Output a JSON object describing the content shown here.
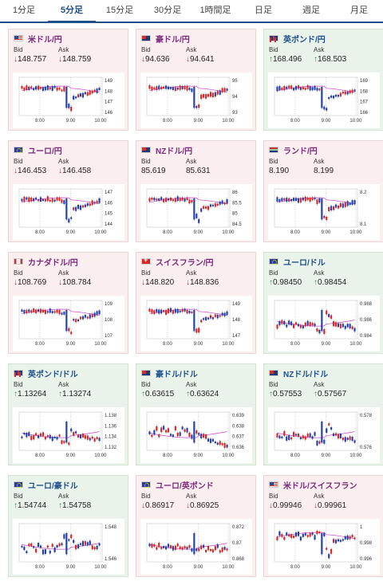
{
  "tabs": [
    "1分足",
    "5分足",
    "15分足",
    "30分足",
    "1時間足",
    "日足",
    "週足",
    "月足"
  ],
  "active_tab": 1,
  "labels": {
    "bid": "Bid",
    "ask": "Ask"
  },
  "cards": [
    {
      "pair": "米ドル/円",
      "flag": "us",
      "dir": "down",
      "bid": "148.757",
      "ask": "148.759",
      "yticks": [
        "149",
        "148",
        "147",
        "146"
      ],
      "xticks": [
        "8:00",
        "9:00",
        "10:00"
      ]
    },
    {
      "pair": "豪ドル/円",
      "flag": "au",
      "dir": "down",
      "bid": "94.636",
      "ask": "94.641",
      "yticks": [
        "95",
        "94",
        "93"
      ],
      "xticks": [
        "8:00",
        "9:00",
        "10:00"
      ]
    },
    {
      "pair": "英ポンド/円",
      "flag": "gb",
      "dir": "up",
      "bid": "168.496",
      "ask": "168.503",
      "yticks": [
        "169",
        "168",
        "167",
        "166"
      ],
      "xticks": [
        "8:00",
        "9:00",
        "10:00"
      ]
    },
    {
      "pair": "ユーロ/円",
      "flag": "eu",
      "dir": "down",
      "bid": "146.453",
      "ask": "146.458",
      "yticks": [
        "147",
        "146",
        "145",
        "144"
      ],
      "xticks": [
        "8:00",
        "9:00",
        "10:00"
      ]
    },
    {
      "pair": "NZドル/円",
      "flag": "nz",
      "dir": "none",
      "bid": "85.619",
      "ask": "85.631",
      "yticks": [
        "86",
        "85.5",
        "85",
        "84.5"
      ],
      "xticks": [
        "8:00",
        "9:00",
        "10:00"
      ]
    },
    {
      "pair": "ランド/円",
      "flag": "za",
      "dir": "none",
      "bid": "8.190",
      "ask": "8.199",
      "yticks": [
        "8.2",
        "8.1"
      ],
      "xticks": [
        "8:00",
        "9:00",
        "10:00"
      ]
    },
    {
      "pair": "カナダドル/円",
      "flag": "ca",
      "dir": "down",
      "bid": "108.769",
      "ask": "108.784",
      "yticks": [
        "109",
        "108",
        "107"
      ],
      "xticks": [
        "8:00",
        "9:00",
        "10:00"
      ]
    },
    {
      "pair": "スイスフラン/円",
      "flag": "ch",
      "dir": "down",
      "bid": "148.820",
      "ask": "148.836",
      "yticks": [
        "149",
        "148",
        "147"
      ],
      "xticks": [
        "8:00",
        "9:00",
        "10:00"
      ]
    },
    {
      "pair": "ユーロ/ドル",
      "flag": "eu",
      "dir": "up",
      "bid": "0.98450",
      "ask": "0.98454",
      "yticks": [
        "0.988",
        "0.986",
        "0.984"
      ],
      "xticks": [
        "8:00",
        "9:00",
        "10:00"
      ]
    },
    {
      "pair": "英ポンド/ドル",
      "flag": "gb",
      "dir": "up",
      "bid": "1.13264",
      "ask": "1.13274",
      "yticks": [
        "1.138",
        "1.136",
        "1.134",
        "1.132"
      ],
      "xticks": [
        "8:00",
        "9:00",
        "10:00"
      ]
    },
    {
      "pair": "豪ドル/ドル",
      "flag": "au",
      "dir": "up",
      "bid": "0.63615",
      "ask": "0.63624",
      "yticks": [
        "0.639",
        "0.638",
        "0.637",
        "0.636"
      ],
      "xticks": [
        "8:00",
        "9:00",
        "10:00"
      ]
    },
    {
      "pair": "NZドル/ドル",
      "flag": "nz",
      "dir": "up",
      "bid": "0.57553",
      "ask": "0.57567",
      "yticks": [
        "0.578",
        "0.576"
      ],
      "xticks": [
        "8:00",
        "9:00",
        "10:00"
      ]
    },
    {
      "pair": "ユーロ/豪ドル",
      "flag": "eu",
      "dir": "up",
      "bid": "1.54744",
      "ask": "1.54758",
      "yticks": [
        "1.548",
        "1.546"
      ],
      "xticks": [
        "8:00",
        "9:00",
        "10:00"
      ]
    },
    {
      "pair": "ユーロ/英ポンド",
      "flag": "eu",
      "dir": "down",
      "bid": "0.86917",
      "ask": "0.86925",
      "yticks": [
        "0.872",
        "0.87",
        "0.868"
      ],
      "xticks": [
        "8:00",
        "9:00",
        "10:00"
      ]
    },
    {
      "pair": "米ドル/スイスフラン",
      "flag": "us",
      "dir": "down",
      "bid": "0.99946",
      "ask": "0.99961",
      "yticks": [
        "1",
        "0.998",
        "0.996"
      ],
      "xticks": [
        "8:00",
        "9:00",
        "10:00"
      ]
    }
  ],
  "colors": {
    "up_candle": "#1f3fb0",
    "down_candle": "#e02222",
    "ma_line": "#d040d0",
    "ma2_line": "#40a0e0",
    "accent": "#1e4f8c"
  },
  "chart_pattern": {
    "drop": [
      0.58,
      0.62
    ],
    "shapes": [
      "jpy",
      "jpy",
      "jpy",
      "jpy",
      "jpy",
      "jpy",
      "jpy",
      "jpy",
      "eur",
      "eur",
      "gbp",
      "eur",
      "usdup",
      "eurgbp",
      "chf"
    ]
  }
}
